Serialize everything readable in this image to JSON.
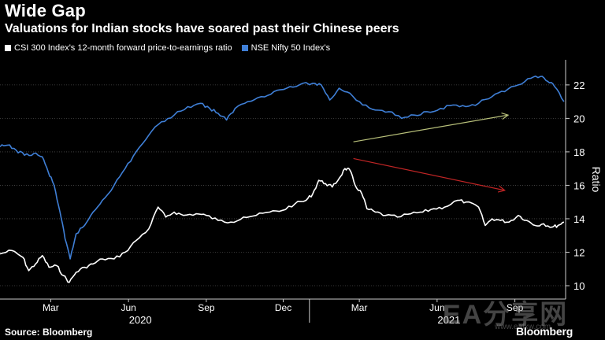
{
  "title": "Wide Gap",
  "subtitle": "Valuations for Indian stocks have soared past their Chinese peers",
  "source": "Source: Bloomberg",
  "brand": "Bloomberg",
  "watermark": {
    "text": "EA分享网",
    "url": "www.eafxw.com"
  },
  "colors": {
    "background": "#000000",
    "csi": "#ffffff",
    "nifty": "#3f7fd6",
    "arrow_up": "#b8c07a",
    "arrow_down": "#c02525",
    "grid": "#4a4a4a"
  },
  "chart_data": {
    "type": "line",
    "title": "Wide Gap",
    "subtitle": "Valuations for Indian stocks have soared past their Chinese peers",
    "ylabel": "Ratio",
    "ylim": [
      9.2,
      23.5
    ],
    "xlim": [
      "2020-01-01",
      "2021-10-31"
    ],
    "yticks": [
      10,
      12,
      14,
      16,
      18,
      20,
      22
    ],
    "xticks": [
      {
        "label": "Mar",
        "date": "2020-03-01"
      },
      {
        "label": "Jun",
        "date": "2020-06-01"
      },
      {
        "label": "Sep",
        "date": "2020-09-01"
      },
      {
        "label": "Dec",
        "date": "2020-12-01"
      },
      {
        "label": "Mar",
        "date": "2021-03-01"
      },
      {
        "label": "Jun",
        "date": "2021-06-01"
      },
      {
        "label": "Sep",
        "date": "2021-09-01"
      }
    ],
    "year_labels": [
      {
        "label": "2020",
        "date": "2020-06-15"
      },
      {
        "label": "2021",
        "date": "2021-06-15"
      }
    ],
    "year_divider": "2021-01-01",
    "grid": true,
    "legend_position": "top-left",
    "series": [
      {
        "name": "CSI 300 Index's 12-month forward price-to-earnings ratio",
        "color": "#ffffff",
        "points": [
          [
            "2020-01-01",
            11.9
          ],
          [
            "2020-01-15",
            12.1
          ],
          [
            "2020-01-28",
            11.7
          ],
          [
            "2020-02-04",
            10.9
          ],
          [
            "2020-02-12",
            11.3
          ],
          [
            "2020-02-20",
            11.8
          ],
          [
            "2020-02-28",
            11.1
          ],
          [
            "2020-03-08",
            11.2
          ],
          [
            "2020-03-16",
            10.6
          ],
          [
            "2020-03-23",
            10.2
          ],
          [
            "2020-03-31",
            10.8
          ],
          [
            "2020-04-10",
            11.1
          ],
          [
            "2020-04-20",
            11.3
          ],
          [
            "2020-05-01",
            11.6
          ],
          [
            "2020-05-15",
            11.6
          ],
          [
            "2020-05-28",
            12.0
          ],
          [
            "2020-06-10",
            12.7
          ],
          [
            "2020-06-25",
            13.4
          ],
          [
            "2020-07-06",
            14.7
          ],
          [
            "2020-07-15",
            14.1
          ],
          [
            "2020-07-25",
            14.4
          ],
          [
            "2020-08-05",
            14.2
          ],
          [
            "2020-08-20",
            14.3
          ],
          [
            "2020-09-01",
            14.2
          ],
          [
            "2020-09-15",
            13.9
          ],
          [
            "2020-09-30",
            13.8
          ],
          [
            "2020-10-15",
            14.1
          ],
          [
            "2020-10-30",
            14.2
          ],
          [
            "2020-11-15",
            14.4
          ],
          [
            "2020-11-30",
            14.5
          ],
          [
            "2020-12-15",
            14.9
          ],
          [
            "2020-12-28",
            15.1
          ],
          [
            "2021-01-05",
            15.5
          ],
          [
            "2021-01-12",
            16.3
          ],
          [
            "2021-01-20",
            16.1
          ],
          [
            "2021-01-28",
            15.9
          ],
          [
            "2021-02-05",
            16.4
          ],
          [
            "2021-02-12",
            17.0
          ],
          [
            "2021-02-18",
            16.9
          ],
          [
            "2021-02-24",
            16.0
          ],
          [
            "2021-03-04",
            15.5
          ],
          [
            "2021-03-10",
            14.6
          ],
          [
            "2021-03-20",
            14.4
          ],
          [
            "2021-04-01",
            14.2
          ],
          [
            "2021-04-15",
            14.1
          ],
          [
            "2021-05-01",
            14.3
          ],
          [
            "2021-05-15",
            14.4
          ],
          [
            "2021-05-28",
            14.6
          ],
          [
            "2021-06-10",
            14.7
          ],
          [
            "2021-06-25",
            15.1
          ],
          [
            "2021-07-05",
            15.0
          ],
          [
            "2021-07-20",
            14.7
          ],
          [
            "2021-07-28",
            13.6
          ],
          [
            "2021-08-05",
            14.0
          ],
          [
            "2021-08-15",
            13.9
          ],
          [
            "2021-08-25",
            13.8
          ],
          [
            "2021-09-05",
            14.2
          ],
          [
            "2021-09-15",
            13.9
          ],
          [
            "2021-09-25",
            13.6
          ],
          [
            "2021-10-05",
            13.7
          ],
          [
            "2021-10-15",
            13.5
          ],
          [
            "2021-10-22",
            13.6
          ],
          [
            "2021-10-29",
            13.8
          ]
        ]
      },
      {
        "name": "NSE Nifty 50 Index's",
        "color": "#3f7fd6",
        "points": [
          [
            "2020-01-01",
            18.3
          ],
          [
            "2020-01-10",
            18.4
          ],
          [
            "2020-01-20",
            18.1
          ],
          [
            "2020-01-30",
            17.8
          ],
          [
            "2020-02-10",
            17.9
          ],
          [
            "2020-02-20",
            17.7
          ],
          [
            "2020-02-27",
            16.8
          ],
          [
            "2020-03-05",
            16.0
          ],
          [
            "2020-03-12",
            14.4
          ],
          [
            "2020-03-18",
            12.8
          ],
          [
            "2020-03-24",
            11.6
          ],
          [
            "2020-03-31",
            13.1
          ],
          [
            "2020-04-10",
            13.6
          ],
          [
            "2020-04-20",
            14.4
          ],
          [
            "2020-05-01",
            15.1
          ],
          [
            "2020-05-15",
            16.0
          ],
          [
            "2020-05-28",
            17.0
          ],
          [
            "2020-06-10",
            18.0
          ],
          [
            "2020-06-25",
            19.0
          ],
          [
            "2020-07-10",
            19.8
          ],
          [
            "2020-07-25",
            20.2
          ],
          [
            "2020-08-10",
            20.7
          ],
          [
            "2020-08-25",
            20.9
          ],
          [
            "2020-09-05",
            20.6
          ],
          [
            "2020-09-15",
            20.3
          ],
          [
            "2020-09-25",
            19.9
          ],
          [
            "2020-10-05",
            20.6
          ],
          [
            "2020-10-20",
            21.0
          ],
          [
            "2020-11-05",
            21.3
          ],
          [
            "2020-11-20",
            21.6
          ],
          [
            "2020-12-05",
            21.8
          ],
          [
            "2020-12-20",
            22.0
          ],
          [
            "2021-01-05",
            22.1
          ],
          [
            "2021-01-15",
            22.0
          ],
          [
            "2021-01-25",
            21.1
          ],
          [
            "2021-02-05",
            21.8
          ],
          [
            "2021-02-18",
            21.5
          ],
          [
            "2021-03-05",
            20.8
          ],
          [
            "2021-03-20",
            20.5
          ],
          [
            "2021-04-05",
            20.4
          ],
          [
            "2021-04-20",
            20.0
          ],
          [
            "2021-05-05",
            20.2
          ],
          [
            "2021-05-20",
            20.4
          ],
          [
            "2021-06-05",
            20.6
          ],
          [
            "2021-06-20",
            20.8
          ],
          [
            "2021-07-05",
            20.7
          ],
          [
            "2021-07-20",
            20.9
          ],
          [
            "2021-08-05",
            21.3
          ],
          [
            "2021-08-20",
            21.6
          ],
          [
            "2021-09-05",
            22.0
          ],
          [
            "2021-09-20",
            22.4
          ],
          [
            "2021-10-01",
            22.5
          ],
          [
            "2021-10-10",
            22.2
          ],
          [
            "2021-10-18",
            21.9
          ],
          [
            "2021-10-29",
            21.0
          ]
        ]
      }
    ],
    "annotations": [
      {
        "type": "arrow",
        "color": "#b8c07a",
        "from": [
          "2021-02-22",
          18.6
        ],
        "to": [
          "2021-08-24",
          20.2
        ]
      },
      {
        "type": "arrow",
        "color": "#c02525",
        "from": [
          "2021-02-22",
          17.6
        ],
        "to": [
          "2021-08-20",
          15.7
        ]
      }
    ]
  }
}
